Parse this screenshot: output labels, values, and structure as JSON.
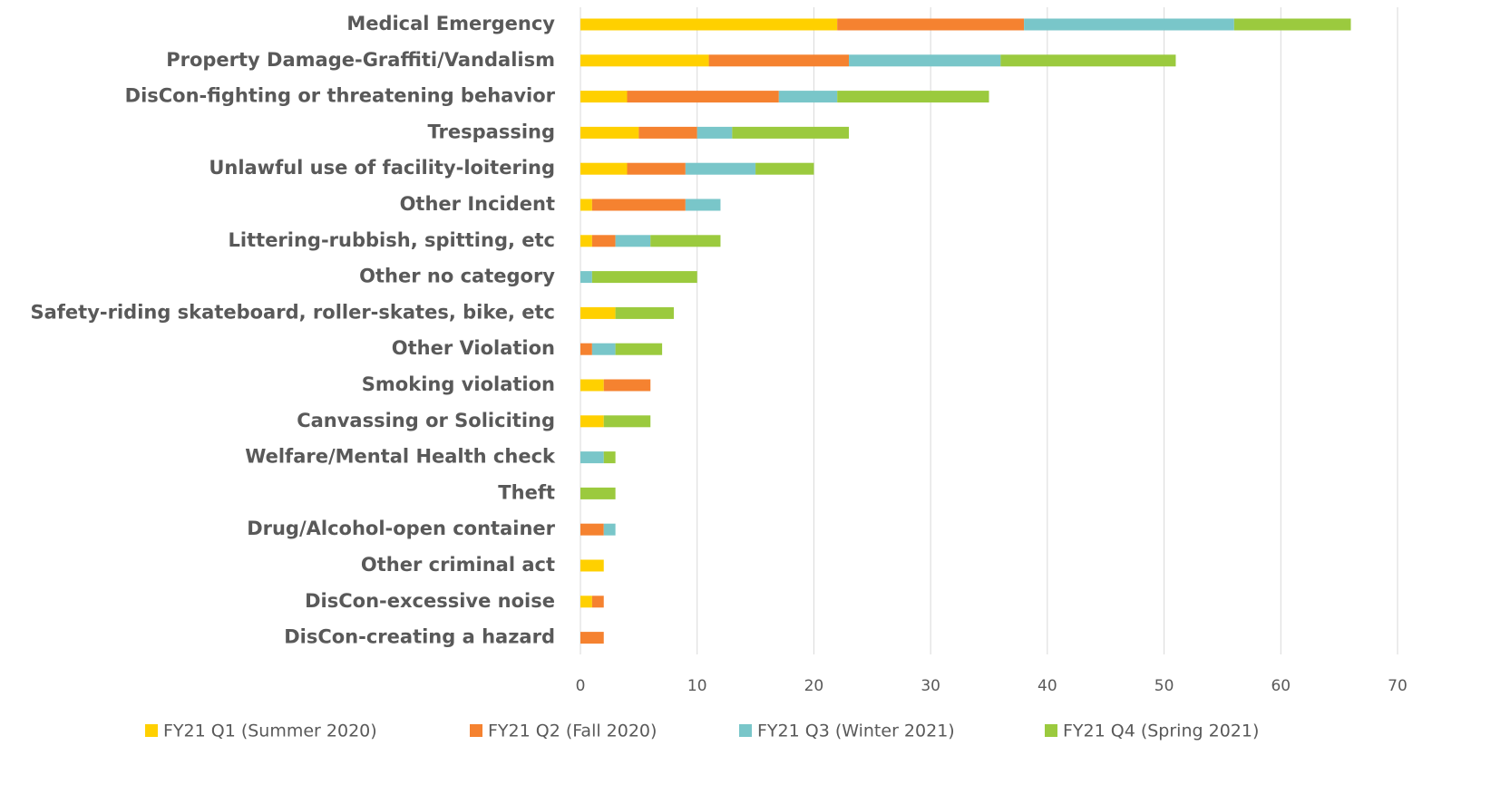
{
  "chart_data": {
    "type": "stacked_bar_horizontal",
    "categories": [
      "Medical Emergency",
      "Property Damage-Graffiti/Vandalism",
      "DisCon-fighting or threatening behavior",
      "Trespassing",
      "Unlawful use of facility-loitering",
      "Other Incident",
      "Littering-rubbish, spitting, etc",
      "Other no category",
      "Safety-riding skateboard, roller-skates, bike, etc",
      "Other Violation",
      "Smoking violation",
      "Canvassing or Soliciting",
      "Welfare/Mental Health check",
      "Theft",
      "Drug/Alcohol-open container",
      "Other criminal act",
      "DisCon-excessive noise",
      "DisCon-creating a hazard"
    ],
    "series": [
      {
        "name": "FY21 Q1 (Summer 2020)",
        "color": "#FFD000",
        "values": [
          22,
          11,
          4,
          5,
          4,
          1,
          1,
          0,
          3,
          0,
          2,
          2,
          0,
          0,
          0,
          2,
          1,
          0
        ]
      },
      {
        "name": "FY21 Q2 (Fall 2020)",
        "color": "#F58230",
        "values": [
          16,
          12,
          13,
          5,
          5,
          8,
          2,
          0,
          0,
          1,
          4,
          0,
          0,
          0,
          2,
          0,
          1,
          2
        ]
      },
      {
        "name": "FY21 Q3 (Winter 2021)",
        "color": "#79C6C9",
        "values": [
          18,
          13,
          5,
          3,
          6,
          3,
          3,
          1,
          0,
          2,
          0,
          0,
          2,
          0,
          1,
          0,
          0,
          0
        ]
      },
      {
        "name": "FY21 Q4 (Spring 2021)",
        "color": "#9BCA3E",
        "values": [
          10,
          15,
          13,
          10,
          5,
          0,
          6,
          9,
          5,
          4,
          0,
          4,
          1,
          3,
          0,
          0,
          0,
          0
        ]
      }
    ],
    "xlim": [
      0,
      70
    ],
    "xticks": [
      0,
      10,
      20,
      30,
      40,
      50,
      60,
      70
    ],
    "grid": true,
    "legend": "bottom"
  }
}
